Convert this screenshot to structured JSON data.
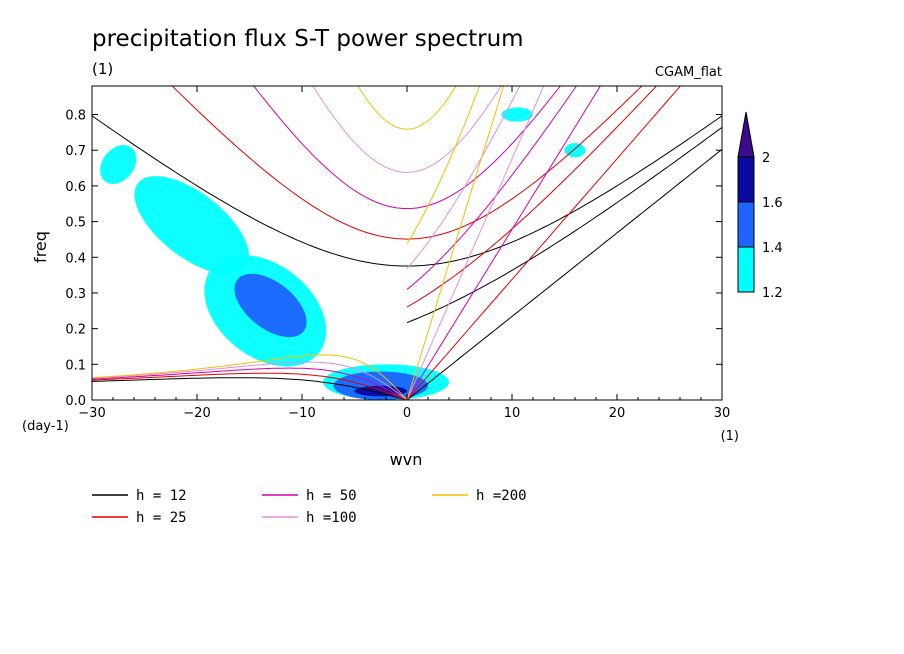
{
  "chart_data": {
    "type": "heatmap",
    "title": "precipitation flux S-T power spectrum",
    "subtitle": "(1)",
    "model_label": "CGAM_flat",
    "xlabel": "wvn",
    "x_units": "(1)",
    "ylabel": "freq",
    "y_units": "(day-1)",
    "xlim": [
      -30,
      30
    ],
    "ylim": [
      0,
      0.88
    ],
    "x_ticks": [
      -30,
      -20,
      -10,
      0,
      10,
      20,
      30
    ],
    "y_ticks": [
      0.0,
      0.1,
      0.2,
      0.3,
      0.4,
      0.5,
      0.6,
      0.7,
      0.8
    ],
    "colorbar": {
      "levels": [
        "1.2",
        "1.4",
        "1.6",
        "2"
      ],
      "colors": [
        "#00ffff",
        "#1e64ff",
        "#0a0aa0",
        "#3c0a8c"
      ]
    },
    "contour_blobs": [
      {
        "level": 1.2,
        "regions": [
          {
            "x": [
              -8,
              4
            ],
            "y": [
              0.0,
              0.1
            ]
          },
          {
            "x": [
              -20,
              -7
            ],
            "y": [
              0.12,
              0.38
            ]
          },
          {
            "x": [
              -27,
              -14
            ],
            "y": [
              0.4,
              0.58
            ]
          },
          {
            "x": [
              -29,
              -26
            ],
            "y": [
              0.6,
              0.72
            ]
          },
          {
            "x": [
              9,
              12
            ],
            "y": [
              0.78,
              0.82
            ]
          },
          {
            "x": [
              15,
              17
            ],
            "y": [
              0.68,
              0.72
            ]
          }
        ]
      },
      {
        "level": 1.6,
        "regions": [
          {
            "x": [
              -7,
              2
            ],
            "y": [
              0.0,
              0.08
            ]
          },
          {
            "x": [
              -17,
              -9
            ],
            "y": [
              0.2,
              0.33
            ]
          }
        ]
      },
      {
        "level": 2.0,
        "regions": [
          {
            "x": [
              -5,
              0
            ],
            "y": [
              0.01,
              0.04
            ]
          }
        ]
      }
    ],
    "dispersion_curves": {
      "legend": [
        {
          "label": "h = 12",
          "color": "#000000"
        },
        {
          "label": "h = 25",
          "color": "#e00000"
        },
        {
          "label": "h = 50",
          "color": "#d000b0"
        },
        {
          "label": "h =100",
          "color": "#e090e0"
        },
        {
          "label": "h =200",
          "color": "#f0c000"
        }
      ],
      "h_values": [
        12,
        25,
        50,
        100,
        200
      ]
    }
  }
}
